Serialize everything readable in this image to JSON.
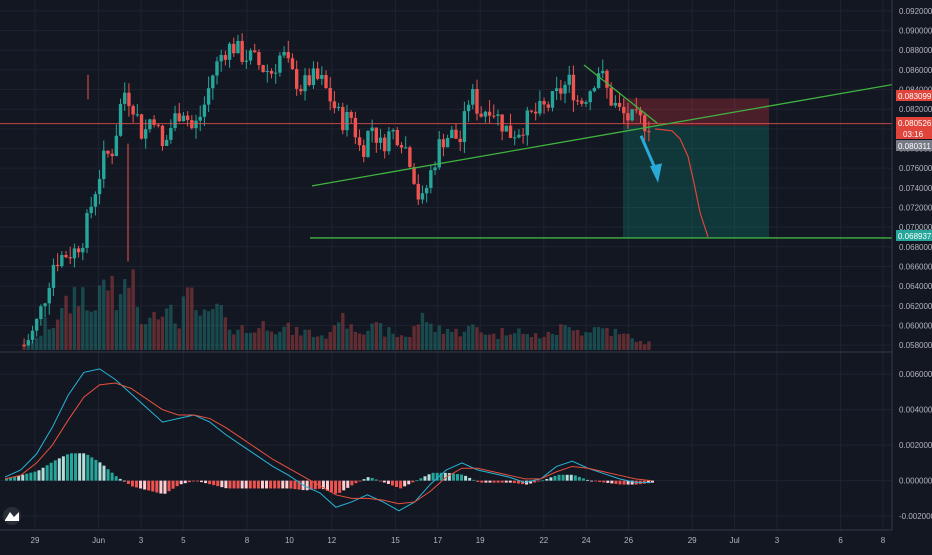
{
  "colors": {
    "background": "#131722",
    "grid": "#1f2330",
    "up": "#26a69a",
    "down": "#ef5350",
    "trendline": "#3fb43f",
    "projection": "#e0443a",
    "arrow": "#2aa8d6",
    "stop_zone": "#5a2a2f",
    "target_zone": "#1a4a4a",
    "macd_line": "#26b5d6",
    "signal_line": "#e8513f",
    "axis_text": "#b2b5be"
  },
  "price_tags": {
    "stop": "0.083099",
    "current": "0.080526",
    "countdown": "03:16",
    "entry": "0.080311",
    "target": "0.068937"
  },
  "logo": {
    "icon": "tradingview-logo-icon"
  },
  "chart_data": [
    {
      "type": "candlestick",
      "title": "",
      "price_axis_ticks": [
        "0.092000",
        "0.090000",
        "0.088000",
        "0.086000",
        "0.084000",
        "0.082000",
        "0.080000",
        "0.078000",
        "0.076000",
        "0.074000",
        "0.072000",
        "0.070000",
        "0.068000",
        "0.066000",
        "0.064000",
        "0.062000",
        "0.060000",
        "0.058000"
      ],
      "ylim": [
        0.0575,
        0.0925
      ],
      "time_axis_labels": [
        "29",
        "Jun",
        "3",
        "5",
        "8",
        "10",
        "12",
        "15",
        "17",
        "19",
        "22",
        "24",
        "26",
        "29",
        "Jul",
        "3",
        "6",
        "8"
      ],
      "grid": true,
      "series": [
        {
          "name": "price",
          "close_path": [
            0.058,
            0.0595,
            0.0625,
            0.0665,
            0.0672,
            0.0675,
            0.069,
            0.0732,
            0.0768,
            0.078,
            0.084,
            0.0825,
            0.0792,
            0.0818,
            0.0778,
            0.0808,
            0.0822,
            0.0798,
            0.0818,
            0.0855,
            0.0878,
            0.0885,
            0.0875,
            0.0872,
            0.0862,
            0.0858,
            0.0878,
            0.0855,
            0.0842,
            0.0852,
            0.0848,
            0.0828,
            0.0808,
            0.0812,
            0.0775,
            0.0805,
            0.0782,
            0.0798,
            0.0792,
            0.0768,
            0.072,
            0.0755,
            0.0788,
            0.0795,
            0.0788,
            0.0838,
            0.0815,
            0.0825,
            0.0808,
            0.0795,
            0.08,
            0.0812,
            0.0818,
            0.0825,
            0.0838,
            0.0848,
            0.0825,
            0.084,
            0.0862,
            0.0832,
            0.0818,
            0.081,
            0.0808,
            0.08053
          ]
        }
      ],
      "volume_relative": [
        0.1,
        0.2,
        0.35,
        0.5,
        0.6,
        0.8,
        0.55,
        0.7,
        0.9,
        0.6,
        1.0,
        0.5,
        0.45,
        0.6,
        0.5,
        0.4,
        0.7,
        0.5,
        0.45,
        0.55,
        0.35,
        0.3,
        0.25,
        0.3,
        0.35,
        0.3,
        0.3,
        0.25,
        0.25,
        0.2,
        0.2,
        0.45,
        0.4,
        0.3,
        0.3,
        0.3,
        0.25,
        0.2,
        0.2,
        0.35,
        0.45,
        0.3,
        0.3,
        0.25,
        0.3,
        0.3,
        0.25,
        0.2,
        0.25,
        0.3,
        0.2,
        0.2,
        0.2,
        0.25,
        0.3,
        0.35,
        0.25,
        0.3,
        0.3,
        0.25,
        0.2,
        0.15,
        0.1,
        0.1
      ],
      "annotations": [
        {
          "kind": "ascending-trendline",
          "from": [
            0.0742,
            12
          ],
          "to": [
            0.0845,
            30
          ]
        },
        {
          "kind": "descending-trendline",
          "from": [
            0.0865,
            24.2
          ],
          "to": [
            0.0806,
            26.9
          ]
        },
        {
          "kind": "support-line",
          "level": 0.0689
        },
        {
          "kind": "short-position",
          "entry": 0.0803,
          "stop": 0.0831,
          "target": 0.0689
        },
        {
          "kind": "projected-path"
        },
        {
          "kind": "down-arrow"
        }
      ]
    },
    {
      "type": "line",
      "title": "",
      "price_axis_ticks": [
        "0.006000",
        "0.004000",
        "0.002000",
        "0.000000",
        "-0.002000"
      ],
      "ylim": [
        -0.0025,
        0.0068
      ],
      "grid": true,
      "series": [
        {
          "values": [
            0.0002,
            0.0006,
            0.0015,
            0.003,
            0.0048,
            0.0061,
            0.0063,
            0.0057,
            0.0049,
            0.0041,
            0.0033,
            0.0035,
            0.0037,
            0.0033,
            0.0026,
            0.002,
            0.0014,
            0.0008,
            0.0003,
            -0.0003,
            -0.0007,
            -0.0015,
            -0.0012,
            -0.0008,
            -0.0012,
            -0.0017,
            -0.0012,
            -0.0002,
            0.0006,
            0.001,
            0.0006,
            0.0004,
            0.0002,
            -0.0001,
            0.0001,
            0.0008,
            0.0011,
            0.0007,
            0.0004,
            0.0001,
            -0.0001,
            -0.0001
          ]
        },
        {
          "values": [
            0.0001,
            0.0003,
            0.001,
            0.002,
            0.0034,
            0.0047,
            0.0054,
            0.0055,
            0.0052,
            0.0046,
            0.004,
            0.0037,
            0.0037,
            0.0035,
            0.003,
            0.0024,
            0.0018,
            0.0012,
            0.0007,
            0.0002,
            -0.0003,
            -0.0008,
            -0.001,
            -0.001,
            -0.0011,
            -0.0013,
            -0.0012,
            -0.0006,
            0.0002,
            0.0007,
            0.0007,
            0.0005,
            0.0003,
            0.0001,
            0.0001,
            0.0005,
            0.0008,
            0.0007,
            0.0005,
            0.0003,
            0.0001,
            0.0
          ]
        }
      ]
    }
  ]
}
